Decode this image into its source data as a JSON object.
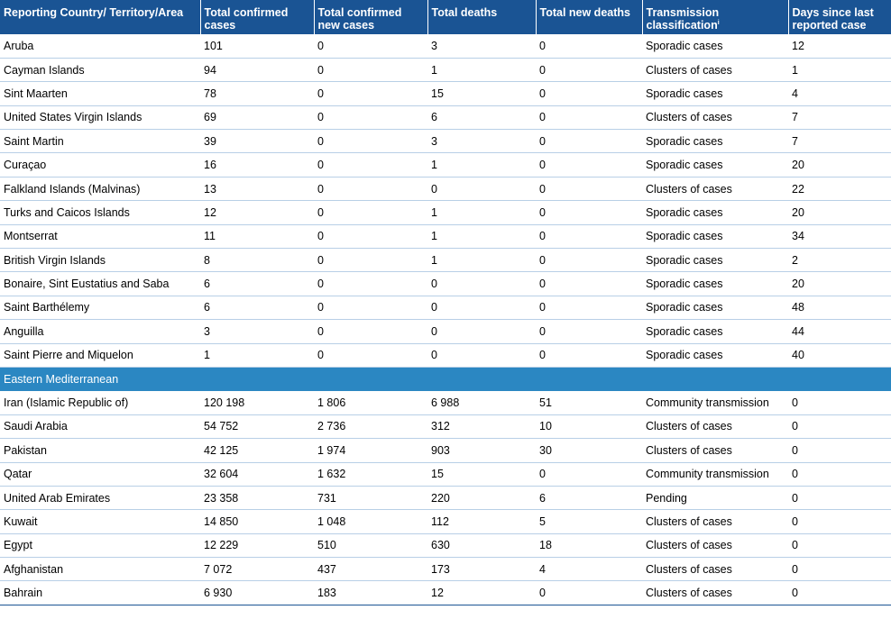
{
  "header": {
    "country": "Reporting Country/ Territory/Area",
    "total_confirmed": "Total confirmed cases",
    "total_new": "Total confirmed new cases",
    "total_deaths": "Total deaths",
    "total_new_deaths": "Total new deaths",
    "transmission": "Transmission classification",
    "transmission_sup": "i",
    "days_since": "Days since last reported case"
  },
  "colors": {
    "header_bg": "#1a5494",
    "region_bg": "#2b87c2",
    "row_divider": "#b8cfe6"
  },
  "rows_top": [
    {
      "country": "Aruba",
      "total": "101",
      "new": "0",
      "deaths": "3",
      "new_deaths": "0",
      "transmission": "Sporadic cases",
      "days": "12"
    },
    {
      "country": "Cayman Islands",
      "total": "94",
      "new": "0",
      "deaths": "1",
      "new_deaths": "0",
      "transmission": "Clusters of cases",
      "days": "1"
    },
    {
      "country": "Sint Maarten",
      "total": "78",
      "new": "0",
      "deaths": "15",
      "new_deaths": "0",
      "transmission": "Sporadic cases",
      "days": "4"
    },
    {
      "country": "United States Virgin Islands",
      "total": "69",
      "new": "0",
      "deaths": "6",
      "new_deaths": "0",
      "transmission": "Clusters of cases",
      "days": "7"
    },
    {
      "country": "Saint Martin",
      "total": "39",
      "new": "0",
      "deaths": "3",
      "new_deaths": "0",
      "transmission": "Sporadic cases",
      "days": "7"
    },
    {
      "country": "Curaçao",
      "total": "16",
      "new": "0",
      "deaths": "1",
      "new_deaths": "0",
      "transmission": "Sporadic cases",
      "days": "20"
    },
    {
      "country": "Falkland Islands (Malvinas)",
      "total": "13",
      "new": "0",
      "deaths": "0",
      "new_deaths": "0",
      "transmission": "Clusters of cases",
      "days": "22"
    },
    {
      "country": "Turks and Caicos Islands",
      "total": "12",
      "new": "0",
      "deaths": "1",
      "new_deaths": "0",
      "transmission": "Sporadic cases",
      "days": "20"
    },
    {
      "country": "Montserrat",
      "total": "11",
      "new": "0",
      "deaths": "1",
      "new_deaths": "0",
      "transmission": "Sporadic cases",
      "days": "34"
    },
    {
      "country": "British Virgin Islands",
      "total": "8",
      "new": "0",
      "deaths": "1",
      "new_deaths": "0",
      "transmission": "Sporadic cases",
      "days": "2"
    },
    {
      "country": "Bonaire, Sint Eustatius and Saba",
      "total": "6",
      "new": "0",
      "deaths": "0",
      "new_deaths": "0",
      "transmission": "Sporadic cases",
      "days": "20"
    },
    {
      "country": "Saint Barthélemy",
      "total": "6",
      "new": "0",
      "deaths": "0",
      "new_deaths": "0",
      "transmission": "Sporadic cases",
      "days": "48"
    },
    {
      "country": "Anguilla",
      "total": "3",
      "new": "0",
      "deaths": "0",
      "new_deaths": "0",
      "transmission": "Sporadic cases",
      "days": "44"
    },
    {
      "country": "Saint Pierre and Miquelon",
      "total": "1",
      "new": "0",
      "deaths": "0",
      "new_deaths": "0",
      "transmission": "Sporadic cases",
      "days": "40"
    }
  ],
  "region": {
    "label": "Eastern Mediterranean"
  },
  "rows_region": [
    {
      "country": "Iran (Islamic Republic of)",
      "total": "120 198",
      "new": "1 806",
      "deaths": "6 988",
      "new_deaths": "51",
      "transmission": "Community transmission",
      "days": "0"
    },
    {
      "country": "Saudi Arabia",
      "total": "54 752",
      "new": "2 736",
      "deaths": "312",
      "new_deaths": "10",
      "transmission": "Clusters of cases",
      "days": "0"
    },
    {
      "country": "Pakistan",
      "total": "42 125",
      "new": "1 974",
      "deaths": "903",
      "new_deaths": "30",
      "transmission": "Clusters of cases",
      "days": "0"
    },
    {
      "country": "Qatar",
      "total": "32 604",
      "new": "1 632",
      "deaths": "15",
      "new_deaths": "0",
      "transmission": "Community transmission",
      "days": "0"
    },
    {
      "country": "United Arab Emirates",
      "total": "23 358",
      "new": "731",
      "deaths": "220",
      "new_deaths": "6",
      "transmission": "Pending",
      "days": "0"
    },
    {
      "country": "Kuwait",
      "total": "14 850",
      "new": "1 048",
      "deaths": "112",
      "new_deaths": "5",
      "transmission": "Clusters of cases",
      "days": "0"
    },
    {
      "country": "Egypt",
      "total": "12 229",
      "new": "510",
      "deaths": "630",
      "new_deaths": "18",
      "transmission": "Clusters of cases",
      "days": "0"
    },
    {
      "country": "Afghanistan",
      "total": "7 072",
      "new": "437",
      "deaths": "173",
      "new_deaths": "4",
      "transmission": "Clusters of cases",
      "days": "0"
    },
    {
      "country": "Bahrain",
      "total": "6 930",
      "new": "183",
      "deaths": "12",
      "new_deaths": "0",
      "transmission": "Clusters of cases",
      "days": "0"
    }
  ]
}
